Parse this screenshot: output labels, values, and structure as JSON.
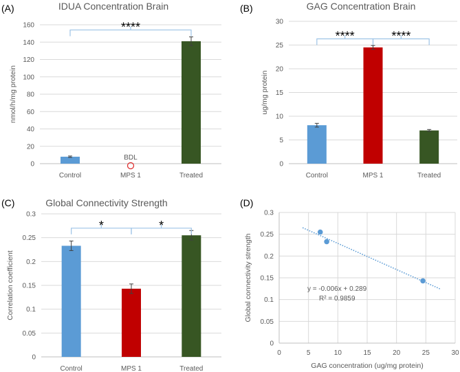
{
  "chart_data": [
    {
      "panel": "(A)",
      "type": "bar",
      "title": "IDUA Concentration Brain",
      "ylabel": "nmol/h/mg protein",
      "xlabel": "",
      "ylim": [
        0,
        160
      ],
      "yticks": [
        0,
        20,
        40,
        60,
        80,
        100,
        120,
        140,
        160
      ],
      "categories": [
        "Control",
        "MPS 1",
        "Treated"
      ],
      "values": [
        8,
        0,
        141
      ],
      "errors": [
        0.8,
        0,
        5
      ],
      "colors": [
        "#5b9bd5",
        "#c00000",
        "#375623"
      ],
      "annotations": [
        {
          "category": "MPS 1",
          "text": "BDL"
        }
      ],
      "significance": [
        {
          "from": 0,
          "to": 2,
          "label": "****",
          "level": 154
        }
      ],
      "grid": true
    },
    {
      "panel": "(B)",
      "type": "bar",
      "title": "GAG Concentration Brain",
      "ylabel": "ug/mg protein",
      "xlabel": "",
      "ylim": [
        0,
        30
      ],
      "yticks": [
        0,
        5,
        10,
        15,
        20,
        25,
        30
      ],
      "categories": [
        "Control",
        "MPS 1",
        "Treated"
      ],
      "values": [
        8.1,
        24.5,
        7.0
      ],
      "errors": [
        0.4,
        0.4,
        0.2
      ],
      "colors": [
        "#5b9bd5",
        "#c00000",
        "#375623"
      ],
      "significance": [
        {
          "from": 0,
          "to": 1,
          "label": "****",
          "level": 26.3
        },
        {
          "from": 1,
          "to": 2,
          "label": "****",
          "level": 26.3
        }
      ],
      "grid": true
    },
    {
      "panel": "(C)",
      "type": "bar",
      "title": "Global Connectivity Strength",
      "ylabel": "Correlation coefficient",
      "xlabel": "",
      "ylim": [
        0,
        0.3
      ],
      "yticks": [
        "0",
        "0.05",
        "0.1",
        "0.15",
        "0.2",
        "0.25",
        "0.3"
      ],
      "categories": [
        "Control",
        "MPS 1",
        "Treated"
      ],
      "values": [
        0.233,
        0.143,
        0.255
      ],
      "errors": [
        0.01,
        0.01,
        0.01
      ],
      "colors": [
        "#5b9bd5",
        "#c00000",
        "#375623"
      ],
      "significance": [
        {
          "from": 0,
          "to": 1,
          "label": "*",
          "level": 0.27
        },
        {
          "from": 1,
          "to": 2,
          "label": "*",
          "level": 0.27
        }
      ],
      "grid": true
    },
    {
      "panel": "(D)",
      "type": "scatter",
      "title": "",
      "xlabel": "GAG concentration (ug/mg protein)",
      "ylabel": "Global connectivity strength",
      "xlim": [
        0,
        30
      ],
      "ylim": [
        0,
        0.3
      ],
      "xticks": [
        "0",
        "5",
        "10",
        "15",
        "20",
        "25",
        "30"
      ],
      "yticks": [
        "0",
        "0.05",
        "0.1",
        "0.15",
        "0.2",
        "0.25",
        "0.3"
      ],
      "points": [
        {
          "x": 8.1,
          "y": 0.233
        },
        {
          "x": 24.5,
          "y": 0.143
        },
        {
          "x": 7.0,
          "y": 0.255
        }
      ],
      "trendline": {
        "slope": -0.006,
        "intercept": 0.289,
        "x_range": [
          4,
          27.5
        ]
      },
      "equation": "y = -0.006x + 0.289",
      "r2": "R² = 0.9859",
      "color": "#5b9bd5",
      "grid": true
    }
  ]
}
